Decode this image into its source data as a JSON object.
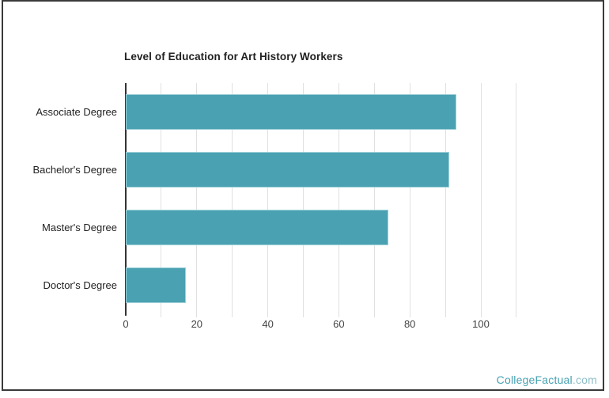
{
  "chart_data": {
    "type": "bar",
    "orientation": "horizontal",
    "title": "Level of Education for Art History Workers",
    "categories": [
      "Associate Degree",
      "Bachelor's Degree",
      "Master's Degree",
      "Doctor's Degree"
    ],
    "values": [
      93,
      91,
      74,
      17
    ],
    "xlabel": "",
    "ylabel": "",
    "xlim": [
      0,
      112
    ],
    "x_ticks": [
      "0",
      "20",
      "40",
      "60",
      "80",
      "100"
    ],
    "gridline_interval": 10,
    "grid": true,
    "legend": "none",
    "bar_color": "#4aa1b1",
    "bar_edge_color": "#9ed0d8",
    "gridline_color": "#e0e0e0",
    "axis_line_color": "#333333",
    "title_color": "#212121",
    "category_label_color": "#222222",
    "tick_label_color": "#444444"
  },
  "watermark": {
    "brand": "CollegeFactual",
    "suffix": ".com",
    "brand_color": "#48a2b2",
    "suffix_color": "#8fbfc8"
  }
}
